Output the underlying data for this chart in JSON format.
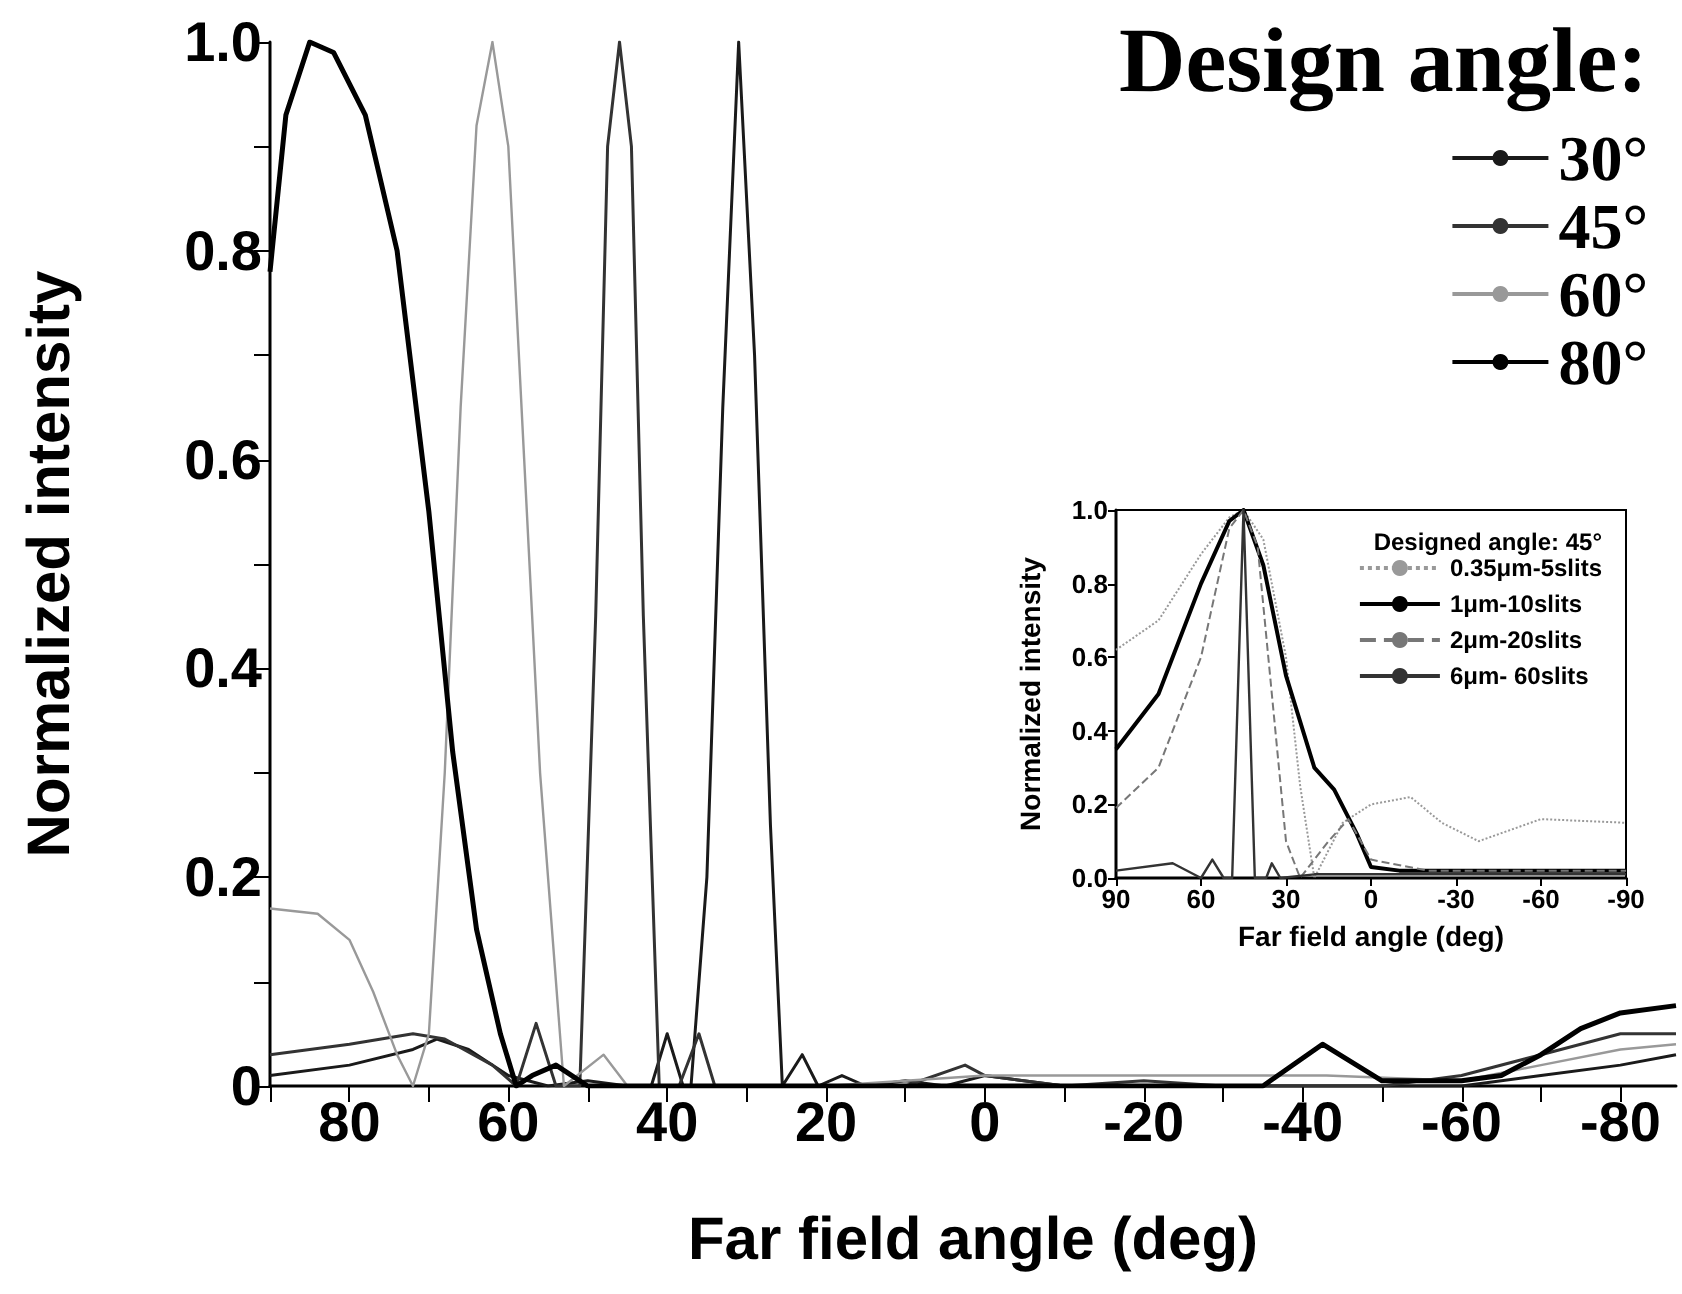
{
  "chart_data": [
    {
      "type": "line",
      "xlabel": "Far field angle (deg)",
      "ylabel": "Normalized intensity",
      "legend_title": "Design angle:",
      "legend": "top right",
      "marker": "none",
      "grid": false,
      "xlim": [
        90,
        -87
      ],
      "ylim": [
        0,
        1.0
      ],
      "xticks": [
        80,
        60,
        40,
        20,
        0,
        -20,
        -40,
        -60,
        -80,
        {
          "value": 90,
          "label": null
        },
        {
          "value": 70,
          "label": null
        },
        {
          "value": 50,
          "label": null
        },
        {
          "value": 30,
          "label": null
        },
        {
          "value": 10,
          "label": null
        },
        {
          "value": -10,
          "label": null
        },
        {
          "value": -30,
          "label": null
        },
        {
          "value": -50,
          "label": null
        },
        {
          "value": -70,
          "label": null
        }
      ],
      "yticks": [
        0,
        0.2,
        0.4,
        0.6,
        0.8,
        {
          "value": 1.0,
          "label": "1.0"
        },
        {
          "value": 0.1,
          "label": null
        },
        {
          "value": 0.3,
          "label": null
        },
        {
          "value": 0.5,
          "label": null
        },
        {
          "value": 0.7,
          "label": null
        },
        {
          "value": 0.9,
          "label": null
        }
      ],
      "series": [
        {
          "name": "30°",
          "color": "#1a1a1a",
          "x": [
            90,
            80,
            72,
            69,
            65,
            60,
            55,
            50,
            45,
            42,
            40,
            38,
            37,
            35,
            33,
            31,
            29,
            27,
            25.5,
            23,
            21,
            18,
            15,
            10,
            5,
            0,
            -10,
            -20,
            -40,
            -60,
            -70,
            -80,
            -87
          ],
          "values": [
            0.01,
            0.02,
            0.035,
            0.045,
            0.035,
            0.01,
            0.0,
            0.005,
            0.0,
            0.0,
            0.05,
            0.0,
            0.0,
            0.2,
            0.65,
            1.0,
            0.7,
            0.25,
            0.0,
            0.03,
            0.0,
            0.01,
            0.0,
            0.005,
            0.0,
            0.01,
            0.0,
            0.0,
            0.0,
            0.0,
            0.01,
            0.02,
            0.03
          ]
        },
        {
          "name": "45°",
          "color": "#333333",
          "x": [
            90,
            80,
            72,
            68,
            62,
            59,
            56.5,
            54,
            51,
            49,
            47.5,
            46,
            44.5,
            43,
            41,
            38.5,
            36,
            34,
            30,
            20,
            10,
            2.5,
            0,
            -10,
            -20,
            -30,
            -42.5,
            -50,
            -60,
            -70,
            -80,
            -87
          ],
          "values": [
            0.03,
            0.04,
            0.05,
            0.045,
            0.02,
            0.0,
            0.06,
            0.0,
            0.0,
            0.45,
            0.9,
            1.0,
            0.9,
            0.45,
            0.0,
            0.0,
            0.05,
            0.0,
            0.0,
            0.0,
            0.0,
            0.02,
            0.01,
            0.0,
            0.005,
            0.0,
            0.0,
            0.0,
            0.01,
            0.03,
            0.05,
            0.05
          ]
        },
        {
          "name": "60°",
          "color": "#999999",
          "x": [
            90,
            84,
            80,
            77,
            74,
            72,
            70,
            68,
            66,
            64,
            62,
            60,
            58,
            56,
            53,
            48,
            45,
            40,
            30,
            20,
            0,
            -20,
            -43,
            -60,
            -70,
            -80,
            -87
          ],
          "values": [
            0.17,
            0.165,
            0.14,
            0.09,
            0.03,
            0.0,
            0.05,
            0.3,
            0.65,
            0.92,
            1.0,
            0.9,
            0.6,
            0.3,
            0.0,
            0.03,
            0.0,
            0.0,
            0.0,
            0.0,
            0.01,
            0.01,
            0.01,
            0.005,
            0.02,
            0.035,
            0.04
          ]
        },
        {
          "name": "80°",
          "color": "#000000",
          "x": [
            90,
            88,
            85,
            82,
            78,
            74,
            70,
            67,
            64,
            61,
            59,
            57,
            54,
            52,
            50,
            45,
            40,
            30,
            20,
            0,
            -20,
            -35,
            -42.5,
            -50,
            -60,
            -65,
            -70,
            -75,
            -80,
            -87
          ],
          "values": [
            0.78,
            0.93,
            1.0,
            0.99,
            0.93,
            0.8,
            0.55,
            0.32,
            0.15,
            0.05,
            0.0,
            0.01,
            0.02,
            0.01,
            0.0,
            0.0,
            0.0,
            0.0,
            0.0,
            0.0,
            0.0,
            0.0,
            0.04,
            0.005,
            0.005,
            0.01,
            0.03,
            0.055,
            0.07,
            0.077
          ]
        }
      ]
    },
    {
      "type": "line",
      "xlabel": "Far field angle (deg)",
      "ylabel": "Normalized intensity",
      "legend_title": "Designed angle: 45°",
      "legend": "top right",
      "marker": "none",
      "grid": false,
      "xlim": [
        90,
        -90
      ],
      "ylim": [
        0,
        1.0
      ],
      "xticks": [
        90,
        60,
        30,
        0,
        -30,
        -60,
        -90
      ],
      "yticks": [
        {
          "value": 0,
          "label": "0.0"
        },
        0.2,
        0.4,
        0.6,
        0.8,
        {
          "value": 1.0,
          "label": "1.0"
        }
      ],
      "series": [
        {
          "name": "0.35μm-5slits",
          "color": "#999999",
          "line_style": "dotted",
          "x": [
            90,
            75,
            60,
            50,
            45,
            38,
            30,
            25,
            20,
            10,
            0,
            -14,
            -25,
            -38,
            -60,
            -90
          ],
          "values": [
            0.62,
            0.7,
            0.88,
            0.98,
            1.0,
            0.92,
            0.6,
            0.25,
            0.0,
            0.15,
            0.2,
            0.22,
            0.15,
            0.1,
            0.16,
            0.15
          ]
        },
        {
          "name": "1μm-10slits",
          "color": "#000000",
          "line_style": "solid",
          "x": [
            90,
            75,
            60,
            50,
            45,
            38,
            30,
            20,
            13,
            5,
            0,
            -10,
            -30,
            -60,
            -90
          ],
          "values": [
            0.35,
            0.5,
            0.8,
            0.97,
            1.0,
            0.85,
            0.55,
            0.3,
            0.24,
            0.12,
            0.03,
            0.02,
            0.02,
            0.02,
            0.02
          ]
        },
        {
          "name": "2μm-20slits",
          "color": "#777777",
          "line_style": "dashed",
          "x": [
            90,
            75,
            60,
            50,
            45,
            40,
            35,
            30,
            25,
            15,
            8,
            0,
            -20,
            -60,
            -90
          ],
          "values": [
            0.19,
            0.3,
            0.6,
            0.95,
            1.0,
            0.9,
            0.5,
            0.1,
            0.0,
            0.1,
            0.16,
            0.05,
            0.02,
            0.02,
            0.02
          ]
        },
        {
          "name": "6μm- 60slits",
          "color": "#333333",
          "line_style": "solid",
          "x": [
            90,
            70,
            60,
            56,
            52,
            49,
            47,
            45,
            43,
            41,
            37,
            35,
            32,
            20,
            0,
            -90
          ],
          "values": [
            0.02,
            0.04,
            0.0,
            0.05,
            0.0,
            0.0,
            0.5,
            1.0,
            0.5,
            0.0,
            0.0,
            0.04,
            0.0,
            0.01,
            0.01,
            0.01
          ]
        }
      ]
    }
  ]
}
